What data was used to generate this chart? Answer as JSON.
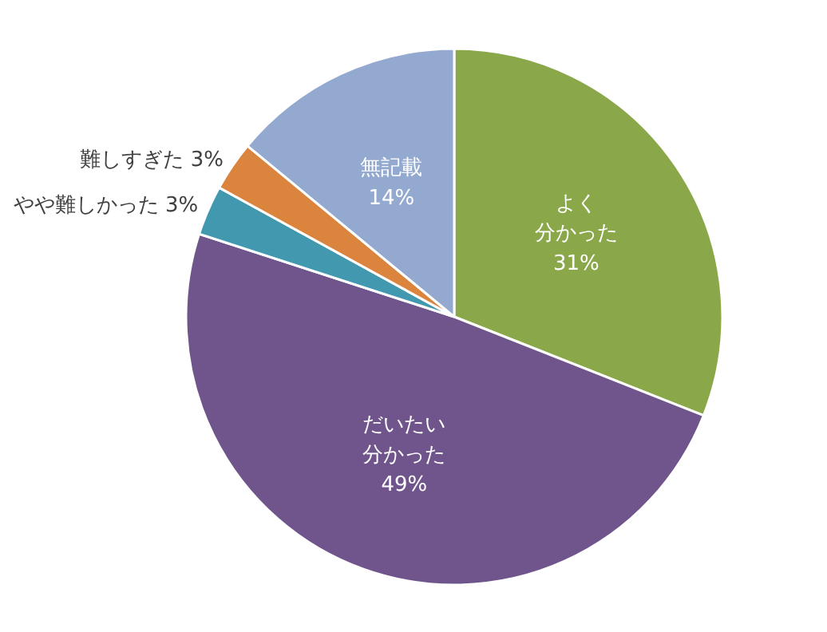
{
  "chart_data": {
    "type": "pie",
    "categories": [
      "よく分かった",
      "だいたい分かった",
      "やや難しかった",
      "難しすぎた",
      "無記載"
    ],
    "values": [
      31,
      49,
      3,
      3,
      14
    ],
    "value_labels": [
      "31%",
      "49%",
      "3%",
      "3%",
      "14%"
    ],
    "colors": [
      "#8aa84a",
      "#70558c",
      "#4198af",
      "#db843d",
      "#93a9cf"
    ]
  }
}
